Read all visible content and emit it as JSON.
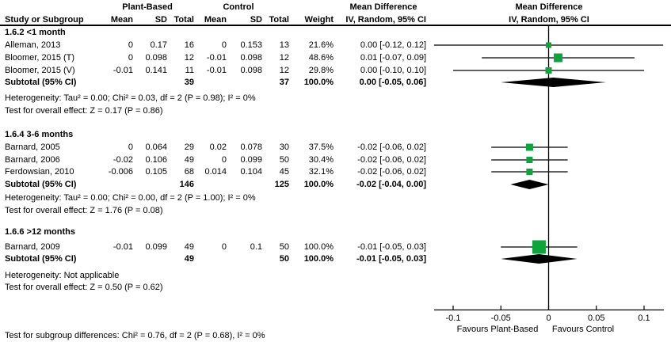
{
  "header": {
    "group_plant": "Plant-Based",
    "group_control": "Control",
    "mean_difference": "Mean Difference",
    "study": "Study or Subgroup",
    "mean": "Mean",
    "sd": "SD",
    "total": "Total",
    "weight": "Weight",
    "iv_random": "IV, Random, 95% CI"
  },
  "colors": {
    "square_green": "#0CA53C",
    "diamond_black": "#000000",
    "line_black": "#000000"
  },
  "chart_data": {
    "type": "forest",
    "effect_measure": "Mean Difference",
    "model": "IV, Random, 95% CI",
    "xlim": [
      -0.12,
      0.12
    ],
    "axis": {
      "ticks": [
        {
          "value": -0.1,
          "label": "-0.1"
        },
        {
          "value": -0.05,
          "label": "-0.05"
        },
        {
          "value": 0,
          "label": "0"
        },
        {
          "value": 0.05,
          "label": "0.05"
        },
        {
          "value": 0.1,
          "label": "0.1"
        }
      ],
      "favours_left": "Favours Plant-Based",
      "favours_right": "Favours Control"
    },
    "subgroups": [
      {
        "label": "1.6.2 <1 month",
        "studies": [
          {
            "name": "Alleman, 2013",
            "pb_mean": "0",
            "pb_sd": "0.17",
            "pb_total": "16",
            "c_mean": "0",
            "c_sd": "0.153",
            "c_total": "13",
            "weight": "21.6%",
            "ci_text": "0.00 [-0.12, 0.12]",
            "effect": 0.0,
            "lo": -0.12,
            "hi": 0.12,
            "sq": 7
          },
          {
            "name": "Bloomer, 2015 (T)",
            "pb_mean": "0",
            "pb_sd": "0.098",
            "pb_total": "12",
            "c_mean": "-0.01",
            "c_sd": "0.098",
            "c_total": "12",
            "weight": "48.6%",
            "ci_text": "0.01 [-0.07, 0.09]",
            "effect": 0.01,
            "lo": -0.07,
            "hi": 0.09,
            "sq": 11
          },
          {
            "name": "Bloomer, 2015 (V)",
            "pb_mean": "-0.01",
            "pb_sd": "0.141",
            "pb_total": "11",
            "c_mean": "-0.01",
            "c_sd": "0.098",
            "c_total": "12",
            "weight": "29.8%",
            "ci_text": "0.00 [-0.10, 0.10]",
            "effect": 0.0,
            "lo": -0.1,
            "hi": 0.1,
            "sq": 8
          }
        ],
        "subtotal": {
          "label": "Subtotal (95% CI)",
          "pb_total": "39",
          "c_total": "37",
          "weight": "100.0%",
          "ci_text": "0.00 [-0.05, 0.06]",
          "effect": 0.005,
          "lo": -0.05,
          "hi": 0.06
        },
        "heterogeneity": "Heterogeneity: Tau² = 0.00; Chi² = 0.03, df = 2 (P = 0.98); I² = 0%",
        "overall_effect": "Test for overall effect: Z = 0.17 (P = 0.86)"
      },
      {
        "label": "1.6.4 3-6 months",
        "studies": [
          {
            "name": "Barnard, 2005",
            "pb_mean": "0",
            "pb_sd": "0.064",
            "pb_total": "29",
            "c_mean": "0.02",
            "c_sd": "0.078",
            "c_total": "30",
            "weight": "37.5%",
            "ci_text": "-0.02 [-0.06, 0.02]",
            "effect": -0.02,
            "lo": -0.06,
            "hi": 0.02,
            "sq": 9
          },
          {
            "name": "Barnard, 2006",
            "pb_mean": "-0.02",
            "pb_sd": "0.106",
            "pb_total": "49",
            "c_mean": "0",
            "c_sd": "0.099",
            "c_total": "50",
            "weight": "30.4%",
            "ci_text": "-0.02 [-0.06, 0.02]",
            "effect": -0.02,
            "lo": -0.06,
            "hi": 0.02,
            "sq": 8
          },
          {
            "name": "Ferdowsian, 2010",
            "pb_mean": "-0.006",
            "pb_sd": "0.105",
            "pb_total": "68",
            "c_mean": "0.014",
            "c_sd": "0.104",
            "c_total": "45",
            "weight": "32.1%",
            "ci_text": "-0.02 [-0.06, 0.02]",
            "effect": -0.02,
            "lo": -0.06,
            "hi": 0.02,
            "sq": 8
          }
        ],
        "subtotal": {
          "label": "Subtotal (95% CI)",
          "pb_total": "146",
          "c_total": "125",
          "weight": "100.0%",
          "ci_text": "-0.02 [-0.04, 0.00]",
          "effect": -0.02,
          "lo": -0.04,
          "hi": 0.0
        },
        "heterogeneity": "Heterogeneity: Tau² = 0.00; Chi² = 0.00, df = 2 (P = 1.00); I² = 0%",
        "overall_effect": "Test for overall effect: Z = 1.76 (P = 0.08)"
      },
      {
        "label": "1.6.6 >12 months",
        "studies": [
          {
            "name": "Barnard, 2009",
            "pb_mean": "-0.01",
            "pb_sd": "0.099",
            "pb_total": "49",
            "c_mean": "0",
            "c_sd": "0.1",
            "c_total": "50",
            "weight": "100.0%",
            "ci_text": "-0.01 [-0.05, 0.03]",
            "effect": -0.01,
            "lo": -0.05,
            "hi": 0.03,
            "sq": 17
          }
        ],
        "subtotal": {
          "label": "Subtotal (95% CI)",
          "pb_total": "49",
          "c_total": "50",
          "weight": "100.0%",
          "ci_text": "-0.01 [-0.05, 0.03]",
          "effect": -0.01,
          "lo": -0.05,
          "hi": 0.03
        },
        "heterogeneity": "Heterogeneity: Not applicable",
        "overall_effect": "Test for overall effect: Z = 0.50 (P = 0.62)"
      }
    ],
    "footer": "Test for subgroup differences: Chi² = 0.76, df = 2 (P = 0.68), I² = 0%"
  }
}
